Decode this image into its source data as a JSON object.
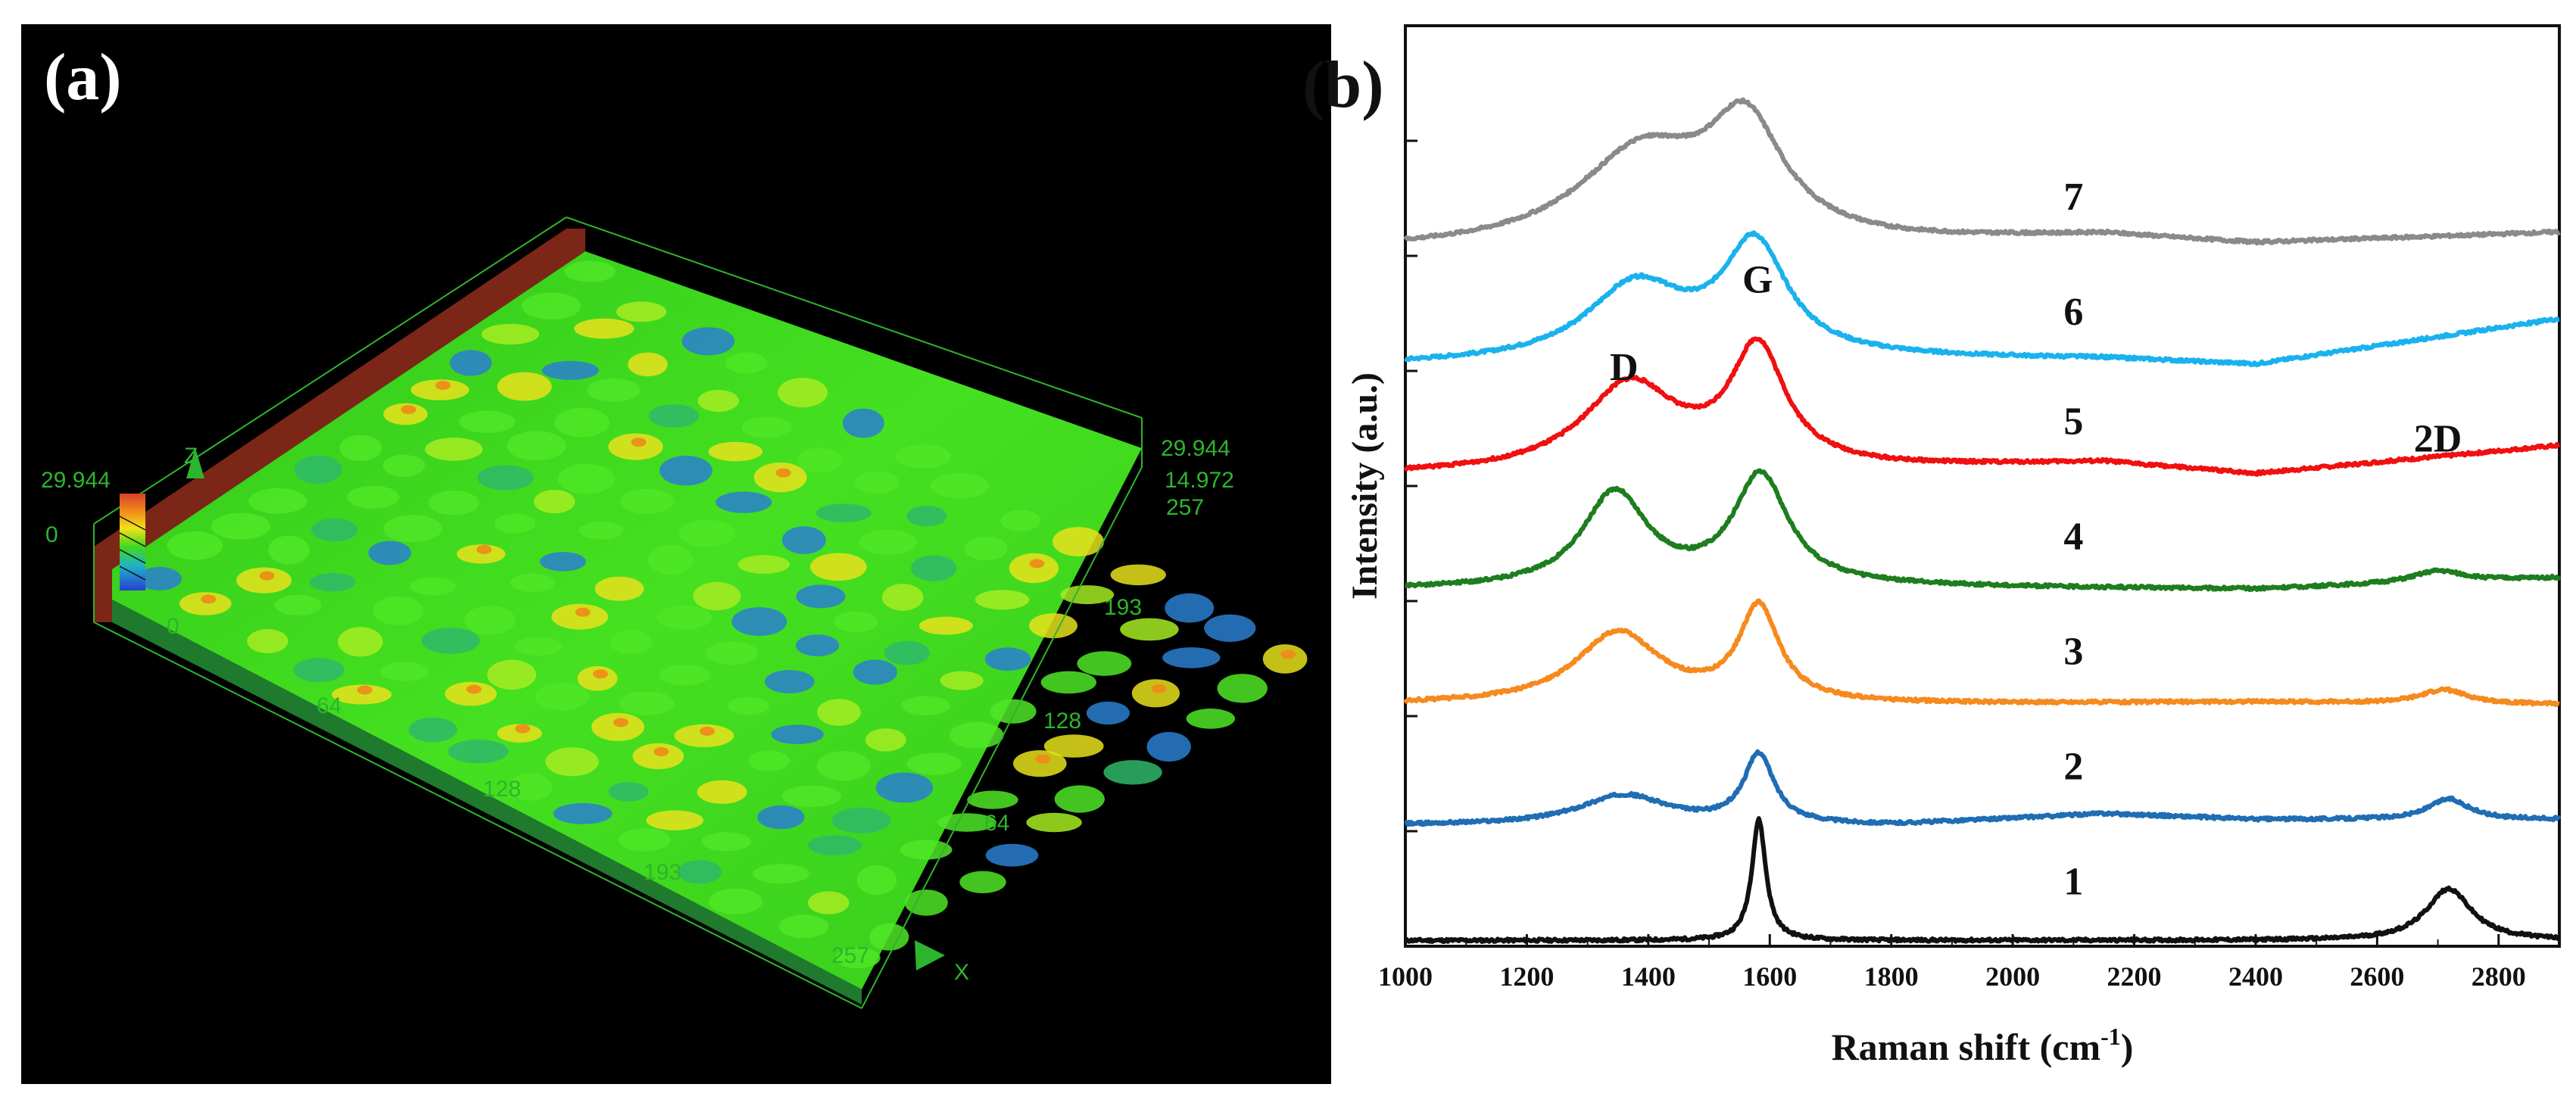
{
  "panel_a": {
    "label": "(a)",
    "colorbar_max": "29.944",
    "colorbar_min": "0",
    "z_axis_label": "Z",
    "x_axis_label": "X",
    "right_scale": [
      "29.944",
      "14.972"
    ],
    "x_ticks": [
      "0",
      "64",
      "128",
      "193",
      "257"
    ],
    "y_ticks": [
      "257",
      "193",
      "128",
      "64"
    ],
    "colors": {
      "background": "#000000",
      "surface": "#3fd81e",
      "peak": "#f2d21a",
      "valley": "#2a4fd0",
      "wall": "#8a2a1a",
      "label": "#2db52d"
    }
  },
  "panel_b": {
    "label": "(b)",
    "peak_labels": {
      "D": "D",
      "G": "G",
      "2D": "2D"
    },
    "curve_numbers": [
      "1",
      "2",
      "3",
      "4",
      "5",
      "6",
      "7"
    ]
  },
  "chart_data": {
    "type": "line",
    "title": "",
    "xlabel": "Raman shift (cm",
    "xlabel_sup": "-1",
    "xlabel_end": ")",
    "ylabel": "Intensity (a.u.)",
    "xlim": [
      1000,
      2900
    ],
    "ylim": [
      0,
      8
    ],
    "x_ticks": [
      1000,
      1200,
      1400,
      1600,
      1800,
      2000,
      2200,
      2400,
      2600,
      2800
    ],
    "annotations": [
      {
        "text": "D",
        "x": 1360,
        "y": 4.92
      },
      {
        "text": "G",
        "x": 1580,
        "y": 5.68
      },
      {
        "text": "2D",
        "x": 2700,
        "y": 4.3
      }
    ],
    "series": [
      {
        "name": "1",
        "color": "#111111",
        "offset": 0.0,
        "label_x": 2100,
        "label_y": 0.45,
        "baseline": [
          [
            1000,
            0.05
          ],
          [
            2900,
            0.05
          ]
        ],
        "peaks": [
          {
            "center": 1582,
            "height": 1.05,
            "width": 14
          },
          {
            "center": 2718,
            "height": 0.45,
            "width": 45
          }
        ]
      },
      {
        "name": "2",
        "color": "#1f6db3",
        "offset": 1.05,
        "label_x": 2100,
        "label_y": 1.45,
        "baseline": [
          [
            1000,
            0.0
          ],
          [
            1800,
            0.0
          ],
          [
            2150,
            0.1
          ],
          [
            2400,
            0.05
          ],
          [
            2900,
            0.05
          ]
        ],
        "peaks": [
          {
            "center": 1360,
            "height": 0.26,
            "width": 90
          },
          {
            "center": 1582,
            "height": 0.6,
            "width": 30
          },
          {
            "center": 2718,
            "height": 0.18,
            "width": 40
          }
        ]
      },
      {
        "name": "3",
        "color": "#f58a1e",
        "offset": 2.1,
        "label_x": 2100,
        "label_y": 2.45,
        "baseline": [
          [
            1000,
            0.0
          ],
          [
            1800,
            0.0
          ],
          [
            2400,
            0.02
          ],
          [
            2900,
            0.0
          ]
        ],
        "peaks": [
          {
            "center": 1350,
            "height": 0.62,
            "width": 85
          },
          {
            "center": 1582,
            "height": 0.82,
            "width": 40
          },
          {
            "center": 2710,
            "height": 0.12,
            "width": 45
          }
        ]
      },
      {
        "name": "4",
        "color": "#1e7d1e",
        "offset": 3.1,
        "label_x": 2100,
        "label_y": 3.45,
        "baseline": [
          [
            1000,
            0.0
          ],
          [
            1800,
            0.02
          ],
          [
            2400,
            0.0
          ],
          [
            2900,
            0.1
          ]
        ],
        "peaks": [
          {
            "center": 1345,
            "height": 0.82,
            "width": 65
          },
          {
            "center": 1585,
            "height": 0.96,
            "width": 55
          },
          {
            "center": 2700,
            "height": 0.1,
            "width": 50
          }
        ]
      },
      {
        "name": "5",
        "color": "#f01010",
        "offset": 4.1,
        "label_x": 2100,
        "label_y": 4.45,
        "baseline": [
          [
            1000,
            0.0
          ],
          [
            1800,
            0.05
          ],
          [
            2150,
            0.1
          ],
          [
            2400,
            0.0
          ],
          [
            2900,
            0.25
          ]
        ],
        "peaks": [
          {
            "center": 1370,
            "height": 0.75,
            "width": 95
          },
          {
            "center": 1580,
            "height": 1.02,
            "width": 55
          }
        ]
      },
      {
        "name": "6",
        "color": "#1ab2ee",
        "offset": 5.05,
        "label_x": 2100,
        "label_y": 5.4,
        "baseline": [
          [
            1000,
            0.0
          ],
          [
            1800,
            0.05
          ],
          [
            2150,
            0.05
          ],
          [
            2400,
            0.0
          ],
          [
            2900,
            0.4
          ]
        ],
        "peaks": [
          {
            "center": 1380,
            "height": 0.65,
            "width": 100
          },
          {
            "center": 1575,
            "height": 0.97,
            "width": 65
          }
        ]
      },
      {
        "name": "7",
        "color": "#8a8a8a",
        "offset": 6.05,
        "label_x": 2100,
        "label_y": 6.4,
        "baseline": [
          [
            1000,
            0.0
          ],
          [
            1800,
            0.05
          ],
          [
            2150,
            0.12
          ],
          [
            2400,
            0.05
          ],
          [
            2900,
            0.15
          ]
        ],
        "peaks": [
          {
            "center": 1390,
            "height": 0.8,
            "width": 130
          },
          {
            "center": 1560,
            "height": 0.96,
            "width": 75
          }
        ]
      }
    ]
  }
}
